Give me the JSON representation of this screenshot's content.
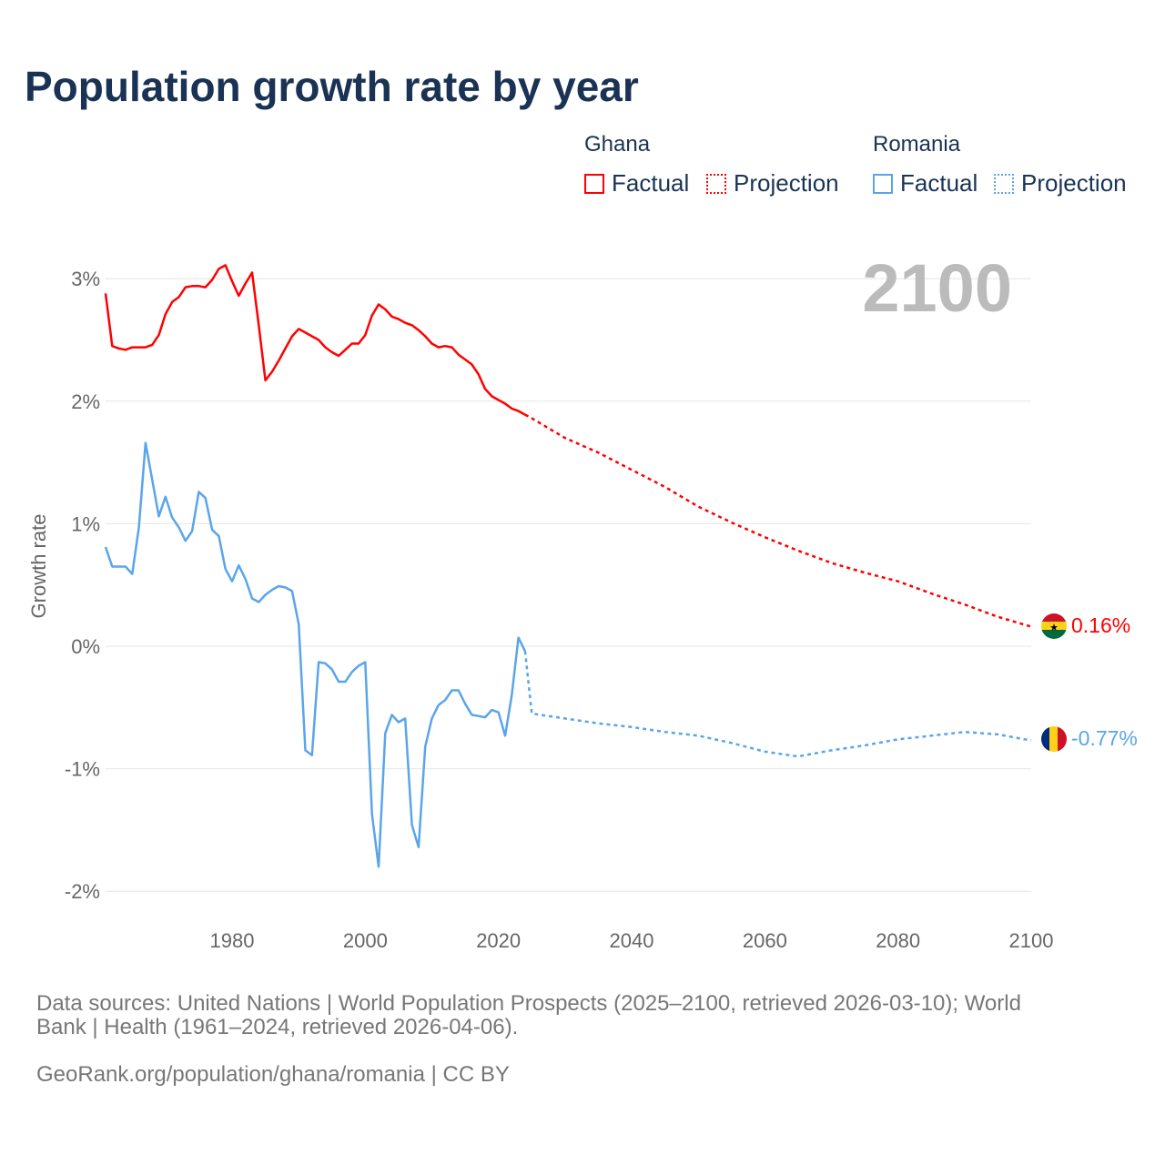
{
  "title": "Population growth rate by year",
  "legend": {
    "groups": [
      {
        "country": "Ghana",
        "color": "#ff0000",
        "factual": "Factual",
        "projection": "Projection"
      },
      {
        "country": "Romania",
        "color": "#5aa5ea",
        "factual": "Factual",
        "projection": "Projection"
      }
    ]
  },
  "year_label": "2100",
  "footer": {
    "sources_line1": "Data sources: United Nations | World Population Prospects (2025–2100, retrieved 2026-03-10); World",
    "sources_line2": "Bank | Health (1961–2024, retrieved 2026-04-06).",
    "url": "GeoRank.org/population/ghana/romania | CC BY"
  },
  "chart_data": {
    "type": "line",
    "title": "Population growth rate by year",
    "xlabel": "",
    "ylabel": "Growth rate",
    "xlim": [
      1961,
      2100
    ],
    "ylim": [
      -2.2,
      3.3
    ],
    "xticks": [
      1980,
      2000,
      2020,
      2040,
      2060,
      2080,
      2100
    ],
    "yticks": [
      3,
      2,
      1,
      0,
      -1,
      -2
    ],
    "ytick_labels": [
      "3%",
      "2%",
      "1%",
      "0%",
      "-1%",
      "-2%"
    ],
    "grid": true,
    "legend_position": "top-right",
    "series": [
      {
        "name": "Ghana",
        "type": "factual",
        "color": "#ff0000",
        "x": [
          1961,
          1962,
          1963,
          1964,
          1965,
          1966,
          1967,
          1968,
          1969,
          1970,
          1971,
          1972,
          1973,
          1974,
          1975,
          1976,
          1977,
          1978,
          1979,
          1980,
          1981,
          1982,
          1983,
          1984,
          1985,
          1986,
          1987,
          1988,
          1989,
          1990,
          1991,
          1992,
          1993,
          1994,
          1995,
          1996,
          1997,
          1998,
          1999,
          2000,
          2001,
          2002,
          2003,
          2004,
          2005,
          2006,
          2007,
          2008,
          2009,
          2010,
          2011,
          2012,
          2013,
          2014,
          2015,
          2016,
          2017,
          2018,
          2019,
          2020,
          2021,
          2022,
          2023,
          2024
        ],
        "y": [
          2.88,
          2.45,
          2.43,
          2.42,
          2.44,
          2.44,
          2.44,
          2.46,
          2.54,
          2.71,
          2.81,
          2.85,
          2.93,
          2.94,
          2.94,
          2.93,
          2.99,
          3.08,
          3.11,
          2.98,
          2.86,
          2.96,
          3.05,
          2.62,
          2.17,
          2.24,
          2.33,
          2.43,
          2.53,
          2.59,
          2.56,
          2.53,
          2.5,
          2.44,
          2.4,
          2.37,
          2.42,
          2.47,
          2.47,
          2.54,
          2.7,
          2.79,
          2.75,
          2.69,
          2.67,
          2.64,
          2.62,
          2.58,
          2.53,
          2.47,
          2.44,
          2.45,
          2.44,
          2.38,
          2.34,
          2.3,
          2.22,
          2.1,
          2.04,
          2.01,
          1.98,
          1.94,
          1.92,
          1.89
        ]
      },
      {
        "name": "Ghana",
        "type": "projection",
        "color": "#ff0000",
        "x": [
          2024,
          2025,
          2030,
          2035,
          2040,
          2045,
          2050,
          2055,
          2060,
          2065,
          2070,
          2075,
          2080,
          2085,
          2090,
          2095,
          2100
        ],
        "y": [
          1.89,
          1.86,
          1.7,
          1.58,
          1.44,
          1.3,
          1.14,
          1.01,
          0.89,
          0.78,
          0.68,
          0.6,
          0.53,
          0.43,
          0.34,
          0.24,
          0.16
        ]
      },
      {
        "name": "Romania",
        "type": "factual",
        "color": "#5aa5ea",
        "x": [
          1961,
          1962,
          1963,
          1964,
          1965,
          1966,
          1967,
          1968,
          1969,
          1970,
          1971,
          1972,
          1973,
          1974,
          1975,
          1976,
          1977,
          1978,
          1979,
          1980,
          1981,
          1982,
          1983,
          1984,
          1985,
          1986,
          1987,
          1988,
          1989,
          1990,
          1991,
          1992,
          1993,
          1994,
          1995,
          1996,
          1997,
          1998,
          1999,
          2000,
          2001,
          2002,
          2003,
          2004,
          2005,
          2006,
          2007,
          2008,
          2009,
          2010,
          2011,
          2012,
          2013,
          2014,
          2015,
          2016,
          2017,
          2018,
          2019,
          2020,
          2021,
          2022,
          2023,
          2024
        ],
        "y": [
          0.81,
          0.65,
          0.65,
          0.65,
          0.59,
          0.97,
          1.66,
          1.36,
          1.06,
          1.22,
          1.05,
          0.97,
          0.86,
          0.94,
          1.26,
          1.21,
          0.95,
          0.9,
          0.63,
          0.53,
          0.66,
          0.55,
          0.39,
          0.36,
          0.42,
          0.46,
          0.49,
          0.48,
          0.45,
          0.18,
          -0.85,
          -0.89,
          -0.13,
          -0.14,
          -0.19,
          -0.29,
          -0.29,
          -0.21,
          -0.16,
          -0.13,
          -1.37,
          -1.8,
          -0.71,
          -0.56,
          -0.62,
          -0.59,
          -1.46,
          -1.64,
          -0.82,
          -0.59,
          -0.48,
          -0.44,
          -0.36,
          -0.36,
          -0.47,
          -0.56,
          -0.57,
          -0.58,
          -0.52,
          -0.54,
          -0.73,
          -0.4,
          0.07,
          -0.04
        ]
      },
      {
        "name": "Romania",
        "type": "projection",
        "color": "#5aa5ea",
        "x": [
          2024,
          2025,
          2030,
          2035,
          2040,
          2045,
          2050,
          2055,
          2060,
          2065,
          2070,
          2075,
          2080,
          2085,
          2090,
          2095,
          2100
        ],
        "y": [
          -0.04,
          -0.55,
          -0.59,
          -0.63,
          -0.66,
          -0.7,
          -0.73,
          -0.79,
          -0.86,
          -0.9,
          -0.85,
          -0.81,
          -0.76,
          -0.73,
          -0.7,
          -0.72,
          -0.77
        ]
      }
    ],
    "end_labels": [
      {
        "country": "Ghana",
        "label": "0.16%",
        "value": 0.16,
        "color": "#ff0000"
      },
      {
        "country": "Romania",
        "label": "-0.77%",
        "value": -0.77,
        "color": "#5aa5ea"
      }
    ]
  }
}
